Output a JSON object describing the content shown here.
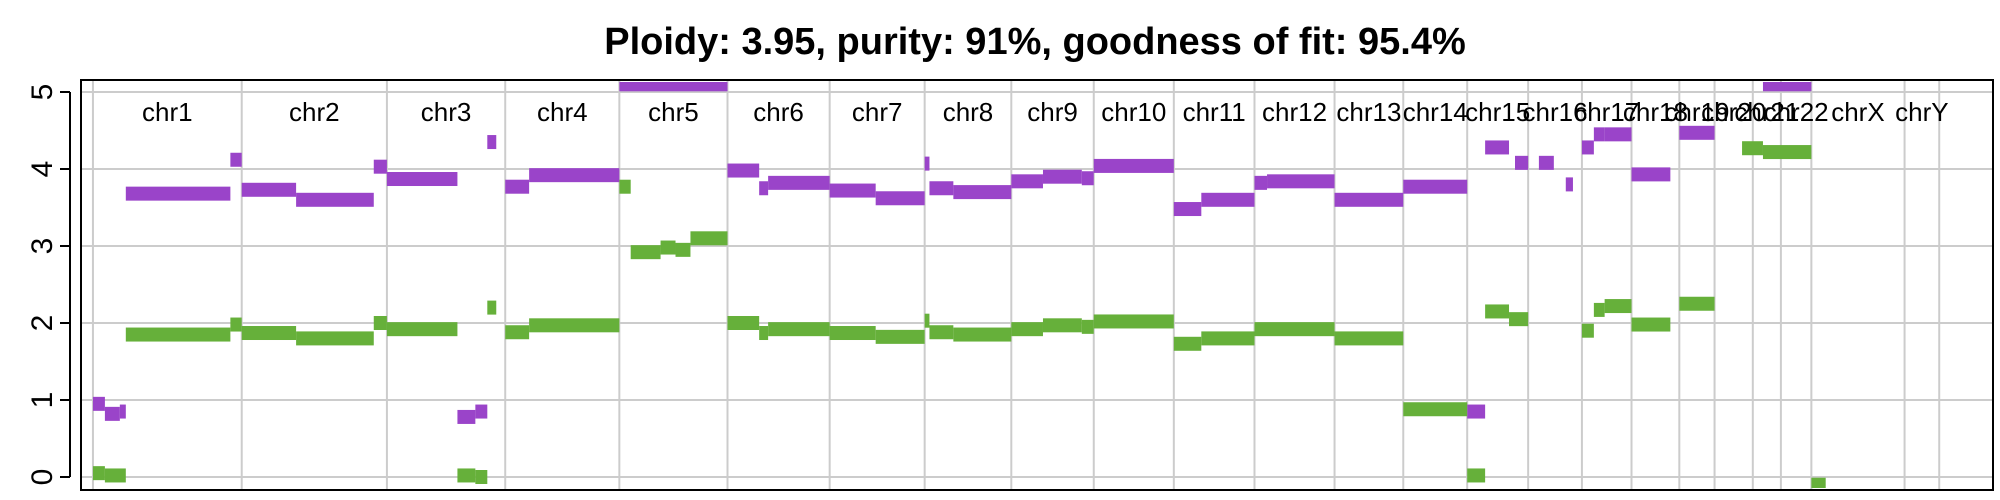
{
  "chart_data": {
    "type": "segment-plot",
    "title": "Ploidy: 3.95, purity: 91%, goodness of fit: 95.4%",
    "xlabel": "",
    "ylabel": "",
    "ylim": [
      0,
      5
    ],
    "yticks": [
      0,
      1,
      2,
      3,
      4,
      5
    ],
    "grid": true,
    "x_unit": "genomic position (Mb)",
    "xlim": [
      -20,
      3180
    ],
    "chromosomes": [
      {
        "name": "chr1",
        "start": 0,
        "end": 249
      },
      {
        "name": "chr2",
        "start": 249,
        "end": 492
      },
      {
        "name": "chr3",
        "start": 492,
        "end": 690
      },
      {
        "name": "chr4",
        "start": 690,
        "end": 881
      },
      {
        "name": "chr5",
        "start": 881,
        "end": 1062
      },
      {
        "name": "chr6",
        "start": 1062,
        "end": 1233
      },
      {
        "name": "chr7",
        "start": 1233,
        "end": 1392
      },
      {
        "name": "chr8",
        "start": 1392,
        "end": 1537
      },
      {
        "name": "chr9",
        "start": 1537,
        "end": 1675
      },
      {
        "name": "chr10",
        "start": 1675,
        "end": 1809
      },
      {
        "name": "chr11",
        "start": 1809,
        "end": 1944
      },
      {
        "name": "chr12",
        "start": 1944,
        "end": 2078
      },
      {
        "name": "chr13",
        "start": 2078,
        "end": 2193
      },
      {
        "name": "chr14",
        "start": 2193,
        "end": 2300
      },
      {
        "name": "chr15",
        "start": 2300,
        "end": 2402
      },
      {
        "name": "chr16",
        "start": 2402,
        "end": 2492
      },
      {
        "name": "chr17",
        "start": 2492,
        "end": 2575
      },
      {
        "name": "chr18",
        "start": 2575,
        "end": 2655
      },
      {
        "name": "chr19",
        "start": 2655,
        "end": 2714
      },
      {
        "name": "chr20",
        "start": 2714,
        "end": 2778
      },
      {
        "name": "chr21",
        "start": 2778,
        "end": 2825
      },
      {
        "name": "chr22",
        "start": 2825,
        "end": 2876
      },
      {
        "name": "chrX",
        "start": 2876,
        "end": 3032
      },
      {
        "name": "chrY",
        "start": 3032,
        "end": 3090
      }
    ],
    "series": [
      {
        "color": "#9a44c9",
        "segments": [
          [
            0,
            20,
            0.95
          ],
          [
            20,
            45,
            0.82
          ],
          [
            45,
            55,
            0.85
          ],
          [
            55,
            230,
            3.68
          ],
          [
            230,
            249,
            4.12
          ],
          [
            249,
            340,
            3.73
          ],
          [
            340,
            470,
            3.6
          ],
          [
            470,
            492,
            4.03
          ],
          [
            492,
            610,
            3.87
          ],
          [
            610,
            640,
            0.78
          ],
          [
            640,
            660,
            0.85
          ],
          [
            660,
            675,
            4.35
          ],
          [
            690,
            730,
            3.77
          ],
          [
            730,
            881,
            3.92
          ],
          [
            881,
            1062,
            5.1
          ],
          [
            1062,
            1115,
            3.98
          ],
          [
            1115,
            1130,
            3.75
          ],
          [
            1130,
            1233,
            3.82
          ],
          [
            1233,
            1310,
            3.72
          ],
          [
            1310,
            1392,
            3.62
          ],
          [
            1392,
            1400,
            4.07
          ],
          [
            1400,
            1440,
            3.75
          ],
          [
            1440,
            1537,
            3.7
          ],
          [
            1537,
            1590,
            3.84
          ],
          [
            1590,
            1655,
            3.9
          ],
          [
            1655,
            1675,
            3.88
          ],
          [
            1675,
            1809,
            4.04
          ],
          [
            1809,
            1855,
            3.48
          ],
          [
            1855,
            1944,
            3.6
          ],
          [
            1944,
            1965,
            3.82
          ],
          [
            1965,
            2078,
            3.84
          ],
          [
            2078,
            2193,
            3.6
          ],
          [
            2193,
            2300,
            3.77
          ],
          [
            2300,
            2330,
            0.85
          ],
          [
            2330,
            2370,
            4.28
          ],
          [
            2380,
            2402,
            4.08
          ],
          [
            2420,
            2445,
            4.08
          ],
          [
            2465,
            2477,
            3.8
          ],
          [
            2492,
            2512,
            4.28
          ],
          [
            2512,
            2530,
            4.45
          ],
          [
            2530,
            2575,
            4.45
          ],
          [
            2575,
            2640,
            3.93
          ],
          [
            2655,
            2714,
            4.47
          ],
          [
            2795,
            2876,
            5.1
          ]
        ]
      },
      {
        "color": "#66b03a",
        "segments": [
          [
            0,
            20,
            0.05
          ],
          [
            20,
            55,
            0.02
          ],
          [
            55,
            230,
            1.85
          ],
          [
            230,
            249,
            1.98
          ],
          [
            249,
            340,
            1.87
          ],
          [
            340,
            470,
            1.8
          ],
          [
            470,
            492,
            2.0
          ],
          [
            492,
            610,
            1.92
          ],
          [
            610,
            640,
            0.02
          ],
          [
            640,
            660,
            0.0
          ],
          [
            660,
            675,
            2.2
          ],
          [
            690,
            730,
            1.88
          ],
          [
            730,
            881,
            1.97
          ],
          [
            881,
            900,
            3.77
          ],
          [
            900,
            950,
            2.92
          ],
          [
            950,
            975,
            2.98
          ],
          [
            975,
            1000,
            2.95
          ],
          [
            1000,
            1062,
            3.1
          ],
          [
            1062,
            1115,
            2.0
          ],
          [
            1115,
            1130,
            1.87
          ],
          [
            1130,
            1233,
            1.92
          ],
          [
            1233,
            1310,
            1.87
          ],
          [
            1310,
            1392,
            1.82
          ],
          [
            1392,
            1400,
            2.03
          ],
          [
            1400,
            1440,
            1.88
          ],
          [
            1440,
            1537,
            1.85
          ],
          [
            1537,
            1590,
            1.92
          ],
          [
            1590,
            1655,
            1.97
          ],
          [
            1655,
            1675,
            1.95
          ],
          [
            1675,
            1809,
            2.02
          ],
          [
            1809,
            1855,
            1.73
          ],
          [
            1855,
            1944,
            1.8
          ],
          [
            1944,
            2078,
            1.92
          ],
          [
            2078,
            2193,
            1.8
          ],
          [
            2193,
            2300,
            0.88
          ],
          [
            2300,
            2330,
            0.02
          ],
          [
            2330,
            2370,
            2.15
          ],
          [
            2370,
            2402,
            2.05
          ],
          [
            2492,
            2512,
            1.9
          ],
          [
            2512,
            2530,
            2.17
          ],
          [
            2530,
            2575,
            2.22
          ],
          [
            2575,
            2640,
            1.98
          ],
          [
            2655,
            2714,
            2.25
          ],
          [
            2760,
            2795,
            4.27
          ],
          [
            2795,
            2876,
            4.22
          ],
          [
            2876,
            2900,
            -0.1
          ]
        ]
      }
    ]
  }
}
